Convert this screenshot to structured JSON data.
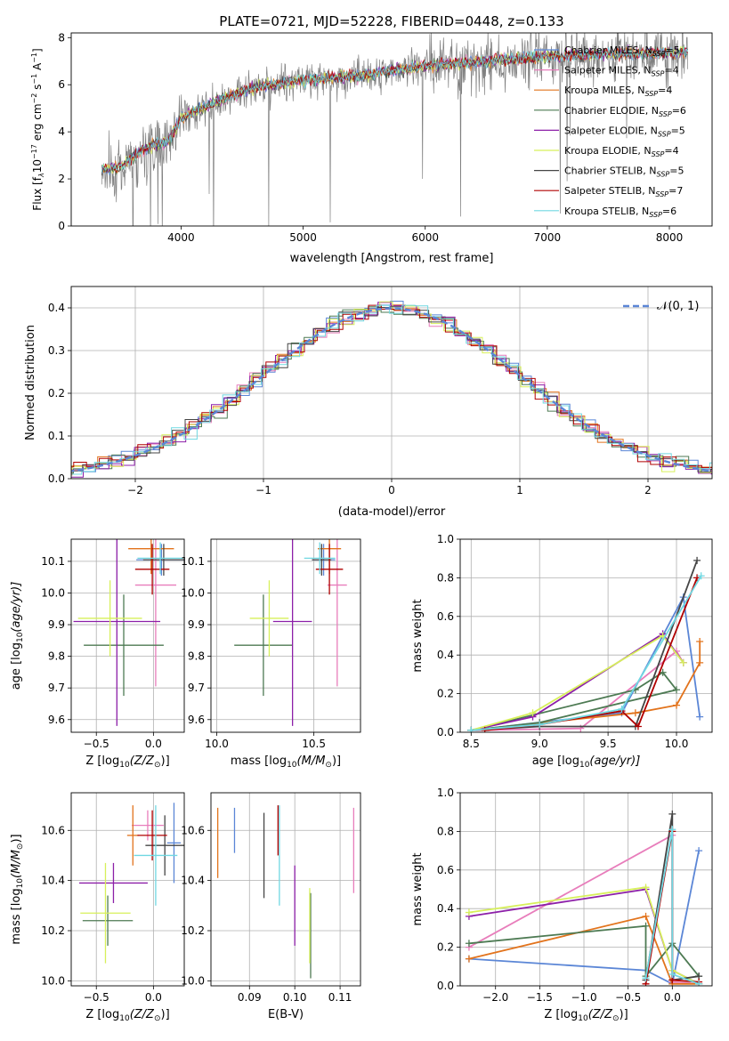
{
  "colors": {
    "c_miles": "#5b86d6",
    "s_miles": "#e87dbb",
    "k_miles": "#e2731c",
    "c_elodie": "#4d7a53",
    "s_elodie": "#8c1fa8",
    "k_elodie": "#d7f05a",
    "c_stelib": "#454545",
    "s_stelib": "#b00000",
    "k_stelib": "#70d8e2",
    "gauss": "#5b86d6",
    "data": "#808080"
  },
  "chart_data": [
    {
      "type": "line",
      "title": "PLATE=0721, MJD=52228, FIBERID=0448, z=0.133",
      "xlabel": "wavelength [Angstrom, rest frame]",
      "ylabel": "Flux [f$_\\lambda$10$^{-17}$ erg cm$^{-2}$ s$^{-1}$ A$^{-1}$]",
      "ylabel_parts": {
        "a": "Flux [f",
        "b": "λ",
        "c": "10",
        "d": "−17",
        "e": " erg cm",
        "f": "−2",
        "g": " s",
        "h": "−1",
        "i": " A",
        "j": "−1",
        "k": "]"
      },
      "xlim": [
        3100,
        8350
      ],
      "ylim": [
        0,
        8.2
      ],
      "xticks": [
        "4000",
        "5000",
        "6000",
        "7000",
        "8000"
      ],
      "xtick_values": [
        4000,
        5000,
        6000,
        7000,
        8000
      ],
      "yticks": [
        "0",
        "2",
        "4",
        "6",
        "8"
      ],
      "ytick_values": [
        0,
        2,
        4,
        6,
        8
      ],
      "continuum": {
        "x": [
          3350,
          3500,
          3700,
          3900,
          4000,
          4300,
          4600,
          5000,
          5500,
          6000,
          6500,
          7000,
          7500,
          8000,
          8150
        ],
        "y": [
          2.4,
          2.5,
          3.3,
          3.6,
          4.6,
          5.3,
          5.9,
          6.2,
          6.4,
          6.8,
          7.0,
          7.2,
          7.3,
          7.35,
          7.4
        ]
      },
      "model_range": [
        3350,
        8150
      ],
      "data_range": [
        3350,
        8150
      ],
      "legend": [
        {
          "label": "Chabrier MILES, N",
          "sub": "SSP",
          "eq": "=5",
          "color": "c_miles"
        },
        {
          "label": "Salpeter MILES, N",
          "sub": "SSP",
          "eq": "=4",
          "color": "s_miles"
        },
        {
          "label": "Kroupa MILES, N",
          "sub": "SSP",
          "eq": "=4",
          "color": "k_miles"
        },
        {
          "label": "Chabrier ELODIE, N",
          "sub": "SSP",
          "eq": "=6",
          "color": "c_elodie"
        },
        {
          "label": "Salpeter ELODIE, N",
          "sub": "SSP",
          "eq": "=5",
          "color": "s_elodie"
        },
        {
          "label": "Kroupa ELODIE, N",
          "sub": "SSP",
          "eq": "=4",
          "color": "k_elodie"
        },
        {
          "label": "Chabrier STELIB, N",
          "sub": "SSP",
          "eq": "=5",
          "color": "c_stelib"
        },
        {
          "label": "Salpeter STELIB, N",
          "sub": "SSP",
          "eq": "=7",
          "color": "s_stelib"
        },
        {
          "label": "Kroupa STELIB, N",
          "sub": "SSP",
          "eq": "=6",
          "color": "k_stelib"
        }
      ]
    },
    {
      "type": "bar",
      "xlabel": "(data-model)/error",
      "ylabel": "Normed distribution",
      "xlim": [
        -2.5,
        2.5
      ],
      "ylim": [
        0,
        0.45
      ],
      "xticks": [
        "−2",
        "−1",
        "0",
        "1",
        "2"
      ],
      "xtick_values": [
        -2,
        -1,
        0,
        1,
        2
      ],
      "yticks": [
        "0.0",
        "0.1",
        "0.2",
        "0.3",
        "0.4"
      ],
      "ytick_values": [
        0,
        0.1,
        0.2,
        0.3,
        0.4
      ],
      "bin_edges": [
        -2.6,
        2.6
      ],
      "bin_width": 0.1,
      "legend_label": "𝒩(0, 1)",
      "series_colors": [
        "c_miles",
        "s_miles",
        "k_miles",
        "c_elodie",
        "s_elodie",
        "k_elodie",
        "c_stelib",
        "s_stelib",
        "k_stelib"
      ],
      "gaussian": {
        "mean": 0,
        "sigma": 1,
        "color": "gauss"
      }
    },
    {
      "type": "scatter",
      "xlabel": "Z [log10(Z/Z⊙)]",
      "xlabel_parts": {
        "a": "Z [log",
        "b": "10",
        "c": "(Z/Z",
        "d": "⊙",
        "e": ")]"
      },
      "ylabel": "age [log10(age/yr)]",
      "ylabel_parts": {
        "a": "age  [log",
        "b": "10",
        "c": "(age/yr)]"
      },
      "xlim": [
        -0.72,
        0.27
      ],
      "ylim": [
        9.56,
        10.17
      ],
      "xticks": [
        "−0.5",
        "0.0"
      ],
      "xtick_values": [
        -0.5,
        0
      ],
      "yticks": [
        "9.6",
        "9.7",
        "9.8",
        "9.9",
        "10.0",
        "10.1"
      ],
      "ytick_values": [
        9.6,
        9.7,
        9.8,
        9.9,
        10.0,
        10.1
      ],
      "points": [
        {
          "c": "c_miles",
          "x": 0.07,
          "xe": 0.22,
          "y": 10.105,
          "ye": 0.05
        },
        {
          "c": "s_miles",
          "x": 0.02,
          "xe": 0.18,
          "y": 10.025,
          "ye": 0.32
        },
        {
          "c": "k_miles",
          "x": -0.02,
          "xe": 0.2,
          "y": 10.14,
          "ye": 0.08
        },
        {
          "c": "c_elodie",
          "x": -0.26,
          "xe": 0.35,
          "y": 9.835,
          "ye": 0.16
        },
        {
          "c": "s_elodie",
          "x": -0.32,
          "xe": 0.38,
          "y": 9.91,
          "ye": 0.33
        },
        {
          "c": "k_elodie",
          "x": -0.38,
          "xe": 0.28,
          "y": 9.92,
          "ye": 0.12
        },
        {
          "c": "c_stelib",
          "x": 0.09,
          "xe": 0.18,
          "y": 10.105,
          "ye": 0.05
        },
        {
          "c": "s_stelib",
          "x": -0.01,
          "xe": 0.15,
          "y": 10.075,
          "ye": 0.08
        },
        {
          "c": "k_stelib",
          "x": 0.06,
          "xe": 0.2,
          "y": 10.11,
          "ye": 0.05
        }
      ]
    },
    {
      "type": "scatter",
      "xlabel": "mass [log10(M/M⊙)]",
      "xlabel_parts": {
        "a": "mass [log",
        "b": "10",
        "c": "(M/M",
        "d": "⊙",
        "e": ")]"
      },
      "ylabel": "",
      "xlim": [
        9.97,
        10.74
      ],
      "ylim": [
        9.56,
        10.17
      ],
      "xticks": [
        "10.0",
        "10.5"
      ],
      "xtick_values": [
        10.0,
        10.5
      ],
      "yticks": [
        "9.6",
        "9.7",
        "9.8",
        "9.9",
        "10.0",
        "10.1"
      ],
      "ytick_values": [
        9.6,
        9.7,
        9.8,
        9.9,
        10.0,
        10.1
      ],
      "points": [
        {
          "c": "c_miles",
          "x": 10.55,
          "xe": 0.06,
          "y": 10.105,
          "ye": 0.05
        },
        {
          "c": "s_miles",
          "x": 10.62,
          "xe": 0.05,
          "y": 10.025,
          "ye": 0.32
        },
        {
          "c": "k_miles",
          "x": 10.58,
          "xe": 0.06,
          "y": 10.14,
          "ye": 0.08
        },
        {
          "c": "c_elodie",
          "x": 10.24,
          "xe": 0.15,
          "y": 9.835,
          "ye": 0.16
        },
        {
          "c": "s_elodie",
          "x": 10.39,
          "xe": 0.1,
          "y": 9.91,
          "ye": 0.33
        },
        {
          "c": "k_elodie",
          "x": 10.27,
          "xe": 0.1,
          "y": 9.92,
          "ye": 0.12
        },
        {
          "c": "c_stelib",
          "x": 10.54,
          "xe": 0.05,
          "y": 10.105,
          "ye": 0.05
        },
        {
          "c": "s_stelib",
          "x": 10.58,
          "xe": 0.07,
          "y": 10.075,
          "ye": 0.08
        },
        {
          "c": "k_stelib",
          "x": 10.53,
          "xe": 0.08,
          "y": 10.11,
          "ye": 0.05
        }
      ]
    },
    {
      "type": "line",
      "xlabel": "age [log10(age/yr)]",
      "xlabel_parts": {
        "a": "age  [log",
        "b": "10",
        "c": "(age/yr)]"
      },
      "ylabel": "mass weight",
      "xlim": [
        8.42,
        10.26
      ],
      "ylim": [
        0,
        1.0
      ],
      "xticks": [
        "8.5",
        "9.0",
        "9.5",
        "10.0"
      ],
      "xtick_values": [
        8.5,
        9.0,
        9.5,
        10.0
      ],
      "yticks": [
        "0.0",
        "0.2",
        "0.4",
        "0.6",
        "0.8",
        "1.0"
      ],
      "ytick_values": [
        0,
        0.2,
        0.4,
        0.6,
        0.8,
        1.0
      ],
      "series": [
        {
          "c": "c_miles",
          "x": [
            8.5,
            9.6,
            10.05,
            10.17
          ],
          "y": [
            0.01,
            0.1,
            0.7,
            0.08
          ]
        },
        {
          "c": "s_miles",
          "x": [
            8.5,
            9.3,
            10.0,
            10.05
          ],
          "y": [
            0.01,
            0.02,
            0.42,
            0.36
          ]
        },
        {
          "c": "k_miles",
          "x": [
            8.5,
            9.7,
            10.0,
            10.17,
            10.17
          ],
          "y": [
            0.01,
            0.1,
            0.14,
            0.36,
            0.47
          ]
        },
        {
          "c": "c_elodie",
          "x": [
            8.5,
            9.7,
            9.9,
            10.0,
            9.0,
            8.5
          ],
          "y": [
            0.01,
            0.22,
            0.31,
            0.22,
            0.05,
            0.01
          ]
        },
        {
          "c": "s_elodie",
          "x": [
            8.5,
            8.95,
            9.9,
            10.05
          ],
          "y": [
            0.01,
            0.08,
            0.51,
            0.36
          ]
        },
        {
          "c": "k_elodie",
          "x": [
            8.5,
            8.95,
            9.9,
            10.05
          ],
          "y": [
            0.01,
            0.1,
            0.5,
            0.36
          ]
        },
        {
          "c": "c_stelib",
          "x": [
            8.5,
            9.0,
            9.7,
            10.15
          ],
          "y": [
            0.01,
            0.03,
            0.03,
            0.89
          ]
        },
        {
          "c": "s_stelib",
          "x": [
            8.6,
            9.0,
            9.6,
            9.72,
            10.15
          ],
          "y": [
            0.01,
            0.04,
            0.11,
            0.03,
            0.8
          ]
        },
        {
          "c": "k_stelib",
          "x": [
            8.5,
            9.0,
            9.6,
            10.18
          ],
          "y": [
            0.01,
            0.04,
            0.12,
            0.81
          ]
        }
      ]
    },
    {
      "type": "scatter",
      "xlabel": "Z [log10(Z/Z⊙)]",
      "xlabel_parts": {
        "a": "Z [log",
        "b": "10",
        "c": "(Z/Z",
        "d": "⊙",
        "e": ")]"
      },
      "ylabel": "mass [log10(M/M⊙)]",
      "ylabel_parts": {
        "a": "mass [log",
        "b": "10",
        "c": "(M/M",
        "d": "⊙",
        "e": ")]"
      },
      "xlim": [
        -0.72,
        0.27
      ],
      "ylim": [
        9.98,
        10.75
      ],
      "xticks": [
        "−0.5",
        "0.0"
      ],
      "xtick_values": [
        -0.5,
        0
      ],
      "yticks": [
        "10.0",
        "10.2",
        "10.4",
        "10.6"
      ],
      "ytick_values": [
        10.0,
        10.2,
        10.4,
        10.6
      ],
      "points": [
        {
          "c": "c_miles",
          "x": 0.18,
          "xe": 0.06,
          "y": 10.55,
          "ye": 0.16
        },
        {
          "c": "s_miles",
          "x": -0.05,
          "xe": 0.14,
          "y": 10.62,
          "ye": 0.06
        },
        {
          "c": "k_miles",
          "x": -0.18,
          "xe": 0.05,
          "y": 10.58,
          "ye": 0.12
        },
        {
          "c": "c_elodie",
          "x": -0.4,
          "xe": 0.22,
          "y": 10.24,
          "ye": 0.1
        },
        {
          "c": "s_elodie",
          "x": -0.35,
          "xe": 0.3,
          "y": 10.39,
          "ye": 0.08
        },
        {
          "c": "k_elodie",
          "x": -0.42,
          "xe": 0.22,
          "y": 10.27,
          "ye": 0.2
        },
        {
          "c": "c_stelib",
          "x": 0.1,
          "xe": 0.17,
          "y": 10.54,
          "ye": 0.12
        },
        {
          "c": "s_stelib",
          "x": -0.01,
          "xe": 0.13,
          "y": 10.58,
          "ye": 0.1
        },
        {
          "c": "k_stelib",
          "x": 0.02,
          "xe": 0.19,
          "y": 10.5,
          "ye": 0.2
        }
      ]
    },
    {
      "type": "scatter",
      "xlabel": "E(B-V)",
      "ylabel": "",
      "xlim": [
        0.0815,
        0.1145
      ],
      "ylim": [
        9.98,
        10.75
      ],
      "xticks": [
        "0.09",
        "0.10",
        "0.11"
      ],
      "xtick_values": [
        0.09,
        0.1,
        0.11
      ],
      "yticks": [
        "10.0",
        "10.2",
        "10.4",
        "10.6"
      ],
      "ytick_values": [
        10.0,
        10.2,
        10.4,
        10.6
      ],
      "points": [
        {
          "c": "k_miles",
          "x": 0.083,
          "xe": 0,
          "y": 10.55,
          "ye": 0.14
        },
        {
          "c": "c_miles",
          "x": 0.0867,
          "xe": 0,
          "y": 10.6,
          "ye": 0.09
        },
        {
          "c": "c_stelib",
          "x": 0.0932,
          "xe": 0,
          "y": 10.5,
          "ye": 0.17
        },
        {
          "c": "s_stelib",
          "x": 0.0963,
          "xe": 0,
          "y": 10.6,
          "ye": 0.1
        },
        {
          "c": "k_stelib",
          "x": 0.0966,
          "xe": 0,
          "y": 10.5,
          "ye": 0.2
        },
        {
          "c": "s_elodie",
          "x": 0.1,
          "xe": 0,
          "y": 10.3,
          "ye": 0.16
        },
        {
          "c": "c_elodie",
          "x": 0.1035,
          "xe": 0,
          "y": 10.18,
          "ye": 0.17
        },
        {
          "c": "k_elodie",
          "x": 0.1033,
          "xe": 0,
          "y": 10.22,
          "ye": 0.15
        },
        {
          "c": "s_miles",
          "x": 0.113,
          "xe": 0,
          "y": 10.52,
          "ye": 0.17
        }
      ]
    },
    {
      "type": "line",
      "xlabel": "Z [log10(Z/Z⊙)]",
      "xlabel_parts": {
        "a": "Z [log",
        "b": "10",
        "c": "(Z/Z",
        "d": "⊙",
        "e": ")]"
      },
      "ylabel": "mass weight",
      "xlim": [
        -2.4,
        0.45
      ],
      "ylim": [
        0,
        1.0
      ],
      "xticks": [
        "−2.0",
        "−1.5",
        "−1.0",
        "−0.5",
        "0.0"
      ],
      "xtick_values": [
        -2.0,
        -1.5,
        -1.0,
        -0.5,
        0.0
      ],
      "yticks": [
        "0.0",
        "0.2",
        "0.4",
        "0.6",
        "0.8",
        "1.0"
      ],
      "ytick_values": [
        0,
        0.2,
        0.4,
        0.6,
        0.8,
        1.0
      ],
      "series": [
        {
          "c": "c_miles",
          "x": [
            -2.3,
            -0.3,
            0.0,
            0.3
          ],
          "y": [
            0.14,
            0.08,
            0.01,
            0.7
          ]
        },
        {
          "c": "s_miles",
          "x": [
            -2.3,
            0.0,
            0.0,
            0.3
          ],
          "y": [
            0.2,
            0.78,
            0.02,
            0.01
          ]
        },
        {
          "c": "k_miles",
          "x": [
            -2.3,
            -0.3,
            0.0,
            0.3
          ],
          "y": [
            0.14,
            0.36,
            0.01,
            0.01
          ]
        },
        {
          "c": "c_elodie",
          "x": [
            -2.3,
            -0.3,
            -0.3,
            0.0,
            0.3
          ],
          "y": [
            0.22,
            0.31,
            0.05,
            0.22,
            0.05
          ]
        },
        {
          "c": "s_elodie",
          "x": [
            -2.3,
            -0.3,
            0.0,
            0.3
          ],
          "y": [
            0.36,
            0.5,
            0.08,
            0.01
          ]
        },
        {
          "c": "k_elodie",
          "x": [
            -2.3,
            -0.3,
            0.0,
            0.3
          ],
          "y": [
            0.38,
            0.51,
            0.08,
            0.01
          ]
        },
        {
          "c": "c_stelib",
          "x": [
            -0.3,
            0.0,
            0.0,
            0.3
          ],
          "y": [
            0.03,
            0.89,
            0.03,
            0.05
          ]
        },
        {
          "c": "s_stelib",
          "x": [
            -0.3,
            0.0,
            0.0,
            0.3
          ],
          "y": [
            0.01,
            0.8,
            0.03,
            0.02
          ]
        },
        {
          "c": "k_stelib",
          "x": [
            -0.3,
            0.0,
            0.0,
            0.3
          ],
          "y": [
            0.04,
            0.81,
            0.06,
            0.01
          ]
        }
      ]
    }
  ]
}
